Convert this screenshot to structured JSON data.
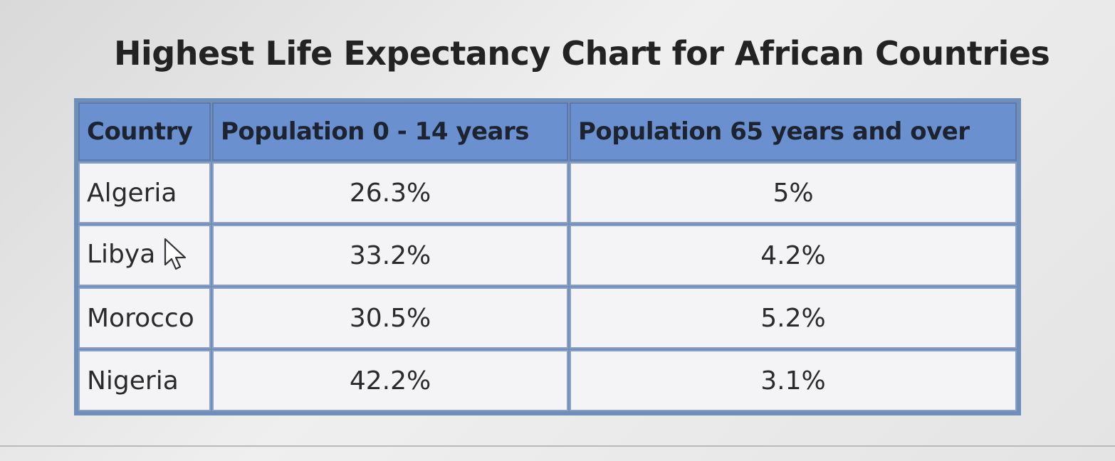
{
  "title": "Highest Life Expectancy Chart for African Countries",
  "table": {
    "headers": [
      "Country",
      "Population 0 - 14 years",
      "Population 65 years and over"
    ],
    "rows": [
      {
        "country": "Algeria",
        "pop_0_14": "26.3%",
        "pop_65_over": "5%"
      },
      {
        "country": "Libya",
        "pop_0_14": "33.2%",
        "pop_65_over": "4.2%"
      },
      {
        "country": "Morocco",
        "pop_0_14": "30.5%",
        "pop_65_over": "5.2%"
      },
      {
        "country": "Nigeria",
        "pop_0_14": "42.2%",
        "pop_65_over": "3.1%"
      }
    ]
  },
  "icons": {
    "cursor": "mouse-pointer-icon"
  },
  "colors": {
    "header_bg": "#6a90cf",
    "cell_bg": "#f4f4f6",
    "border": "#6f8fb8"
  }
}
